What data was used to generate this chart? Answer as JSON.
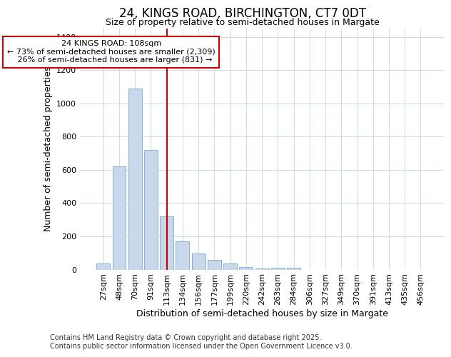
{
  "title": "24, KINGS ROAD, BIRCHINGTON, CT7 0DT",
  "subtitle": "Size of property relative to semi-detached houses in Margate",
  "xlabel": "Distribution of semi-detached houses by size in Margate",
  "ylabel": "Number of semi-detached properties",
  "categories": [
    "27sqm",
    "48sqm",
    "70sqm",
    "91sqm",
    "113sqm",
    "134sqm",
    "156sqm",
    "177sqm",
    "199sqm",
    "220sqm",
    "242sqm",
    "263sqm",
    "284sqm",
    "306sqm",
    "327sqm",
    "349sqm",
    "370sqm",
    "391sqm",
    "413sqm",
    "435sqm",
    "456sqm"
  ],
  "values": [
    35,
    620,
    1090,
    720,
    320,
    170,
    95,
    60,
    38,
    17,
    5,
    12,
    10,
    0,
    0,
    0,
    0,
    0,
    0,
    0,
    0
  ],
  "bar_color": "#c8d8ea",
  "bar_edge_color": "#7aaad0",
  "vline_x_index": 4,
  "vline_color": "#cc0000",
  "annotation_line1": "24 KINGS ROAD: 108sqm",
  "annotation_line2": "← 73% of semi-detached houses are smaller (2,309)",
  "annotation_line3": "   26% of semi-detached houses are larger (831) →",
  "annotation_box_color": "#ffffff",
  "annotation_box_edge_color": "#cc0000",
  "ylim": [
    0,
    1450
  ],
  "yticks": [
    0,
    200,
    400,
    600,
    800,
    1000,
    1200,
    1400
  ],
  "footer_line1": "Contains HM Land Registry data © Crown copyright and database right 2025.",
  "footer_line2": "Contains public sector information licensed under the Open Government Licence v3.0.",
  "bg_color": "#ffffff",
  "grid_color": "#d0dde8",
  "title_fontsize": 12,
  "subtitle_fontsize": 9,
  "axis_label_fontsize": 9,
  "tick_fontsize": 8,
  "footer_fontsize": 7
}
